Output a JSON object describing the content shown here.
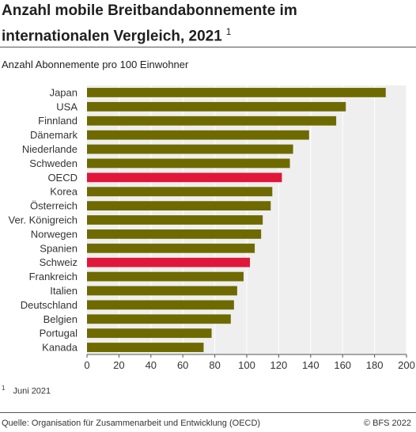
{
  "header": {
    "title": "Anzahl mobile Breitbandabonnemente im internationalen Vergleich, 2021",
    "title_footnote_mark": "1",
    "subtitle": "Anzahl Abonnemente pro 100 Einwohner"
  },
  "footer": {
    "footnote_mark": "1",
    "footnote_text": "Juni 2021",
    "source": "Quelle: Organisation für Zusammenarbeit und Entwicklung (OECD)",
    "copyright": "© BFS 2022"
  },
  "chart_data": {
    "type": "bar",
    "orientation": "horizontal",
    "categories": [
      "Japan",
      "USA",
      "Finnland",
      "Dänemark",
      "Niederlande",
      "Schweden",
      "OECD",
      "Korea",
      "Österreich",
      "Ver. Königreich",
      "Norwegen",
      "Spanien",
      "Schweiz",
      "Frankreich",
      "Italien",
      "Deutschland",
      "Belgien",
      "Portugal",
      "Kanada"
    ],
    "values": [
      187,
      162,
      156,
      139,
      129,
      127,
      122,
      116,
      115,
      110,
      109,
      105,
      102,
      98,
      94,
      92,
      90,
      78,
      73
    ],
    "highlight": [
      "OECD",
      "Schweiz"
    ],
    "xlim": [
      0,
      200
    ],
    "xticks": [
      0,
      20,
      40,
      60,
      80,
      100,
      120,
      140,
      160,
      180,
      200
    ],
    "grid": true,
    "colors": {
      "bar": "#6e6a00",
      "highlight": "#e0173a",
      "plot_bg": "#efefef",
      "grid": "#ffffff"
    }
  }
}
